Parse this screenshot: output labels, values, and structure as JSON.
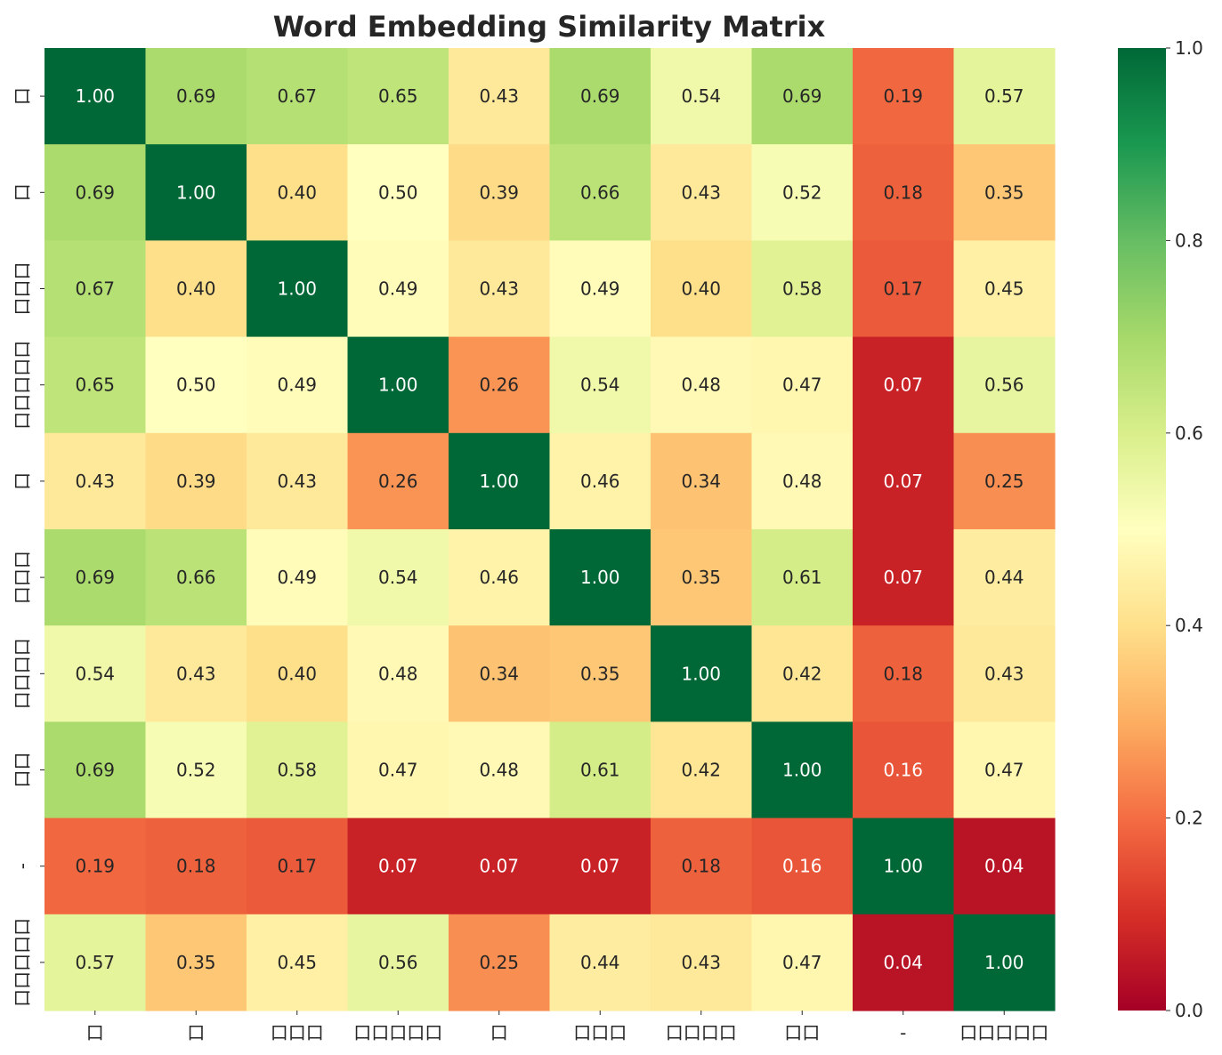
{
  "chart_data": {
    "type": "heatmap",
    "title": "Word Embedding Similarity Matrix",
    "xlabel": "",
    "ylabel": "",
    "x_labels": [
      "口",
      "口",
      "口口口",
      "口口口口口",
      "口",
      "口口口",
      "口口口口",
      "口口",
      "-",
      "口口口口口"
    ],
    "y_labels": [
      "口",
      "口",
      "口口口",
      "口口口口口",
      "口",
      "口口口",
      "口口口口",
      "口口",
      "-",
      "口口口口口"
    ],
    "values": [
      [
        1.0,
        0.69,
        0.67,
        0.65,
        0.43,
        0.69,
        0.54,
        0.69,
        0.19,
        0.57
      ],
      [
        0.69,
        1.0,
        0.4,
        0.5,
        0.39,
        0.66,
        0.43,
        0.52,
        0.18,
        0.35
      ],
      [
        0.67,
        0.4,
        1.0,
        0.49,
        0.43,
        0.49,
        0.4,
        0.58,
        0.17,
        0.45
      ],
      [
        0.65,
        0.5,
        0.49,
        1.0,
        0.26,
        0.54,
        0.48,
        0.47,
        0.07,
        0.56
      ],
      [
        0.43,
        0.39,
        0.43,
        0.26,
        1.0,
        0.46,
        0.34,
        0.48,
        0.07,
        0.25
      ],
      [
        0.69,
        0.66,
        0.49,
        0.54,
        0.46,
        1.0,
        0.35,
        0.61,
        0.07,
        0.44
      ],
      [
        0.54,
        0.43,
        0.4,
        0.48,
        0.34,
        0.35,
        1.0,
        0.42,
        0.18,
        0.43
      ],
      [
        0.69,
        0.52,
        0.58,
        0.47,
        0.48,
        0.61,
        0.42,
        1.0,
        0.16,
        0.47
      ],
      [
        0.19,
        0.18,
        0.17,
        0.07,
        0.07,
        0.07,
        0.18,
        0.16,
        1.0,
        0.04
      ],
      [
        0.57,
        0.35,
        0.45,
        0.56,
        0.25,
        0.44,
        0.43,
        0.47,
        0.04,
        1.0
      ]
    ],
    "value_format": "2 decimals",
    "colormap": "RdYlGn",
    "colorbar": {
      "range": [
        0.0,
        1.0
      ],
      "ticks": [
        "0.0",
        "0.2",
        "0.4",
        "0.6",
        "0.8",
        "1.0"
      ]
    },
    "grid": false
  }
}
